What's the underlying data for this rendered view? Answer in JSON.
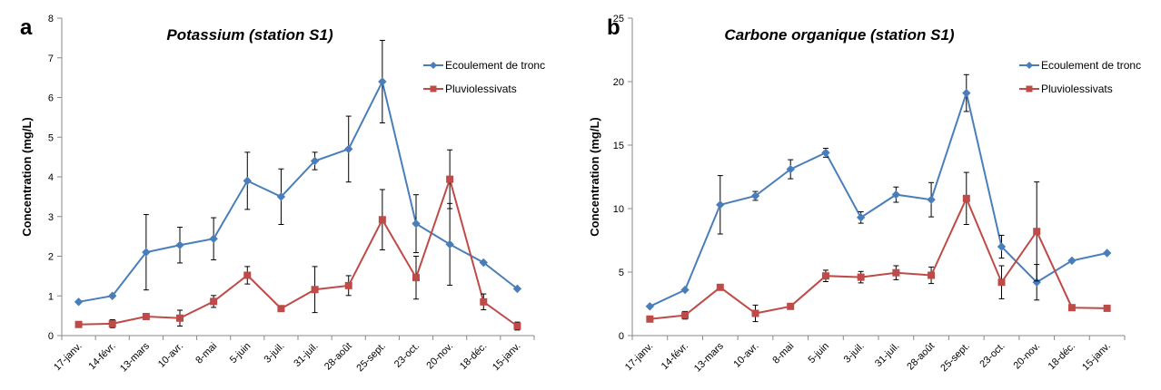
{
  "colors": {
    "series1": "#4a7ebb",
    "series2": "#be4b48",
    "error": "#000000"
  },
  "chart_data": [
    {
      "type": "line",
      "panel": "a",
      "title": "Potassium (station S1)",
      "ylabel": "Concentration (mg/L)",
      "ylim": [
        0,
        8
      ],
      "yticks": [
        0,
        1,
        2,
        3,
        4,
        5,
        6,
        7,
        8
      ],
      "categories": [
        "17-janv.",
        "14-févr.",
        "13-mars",
        "10-avr.",
        "8-mai",
        "5-juin",
        "3-juil.",
        "31-juil.",
        "28-août",
        "25-sept.",
        "23-oct.",
        "20-nov.",
        "18-déc.",
        "15-janv."
      ],
      "legend_position": "top-right",
      "series": [
        {
          "name": "Ecoulement de tronc",
          "marker": "diamond",
          "values": [
            0.85,
            1.0,
            2.1,
            2.28,
            2.44,
            3.9,
            3.5,
            4.4,
            4.7,
            6.4,
            2.82,
            2.3,
            1.84,
            1.18
          ],
          "errors": [
            null,
            null,
            0.95,
            0.45,
            0.53,
            0.72,
            0.7,
            0.22,
            0.83,
            1.04,
            0.73,
            1.03,
            null,
            null
          ]
        },
        {
          "name": "Pluviolessivats",
          "marker": "square",
          "values": [
            0.28,
            0.3,
            0.48,
            0.44,
            0.86,
            1.52,
            0.68,
            1.16,
            1.26,
            2.92,
            1.46,
            3.94,
            0.85,
            0.24
          ],
          "errors": [
            null,
            0.1,
            null,
            0.2,
            0.15,
            0.22,
            null,
            0.58,
            0.25,
            0.76,
            0.54,
            0.74,
            0.2,
            0.1
          ]
        }
      ]
    },
    {
      "type": "line",
      "panel": "b",
      "title": "Carbone organique (station S1)",
      "ylabel": "Concentration (mg/L)",
      "ylim": [
        0,
        25
      ],
      "yticks": [
        0,
        5,
        10,
        15,
        20,
        25
      ],
      "categories": [
        "17-janv.",
        "14-févr.",
        "13-mars",
        "10-avr.",
        "8-mai",
        "5-juin",
        "3-juil.",
        "31-juil.",
        "28-août",
        "25-sept.",
        "23-oct.",
        "20-nov.",
        "18-déc.",
        "15-janv."
      ],
      "legend_position": "top-right",
      "series": [
        {
          "name": "Ecoulement de tronc",
          "marker": "diamond",
          "values": [
            2.3,
            3.6,
            10.3,
            11.0,
            13.1,
            14.4,
            9.3,
            11.1,
            10.7,
            19.1,
            7.0,
            4.2,
            5.9,
            6.5
          ],
          "errors": [
            null,
            null,
            2.3,
            0.35,
            0.75,
            0.35,
            0.45,
            0.6,
            1.35,
            1.45,
            0.9,
            1.4,
            null,
            null
          ]
        },
        {
          "name": "Pluviolessivats",
          "marker": "square",
          "values": [
            1.3,
            1.6,
            3.8,
            1.75,
            2.3,
            4.7,
            4.6,
            4.95,
            4.75,
            10.8,
            4.2,
            8.2,
            2.2,
            2.15
          ],
          "errors": [
            null,
            0.3,
            null,
            0.65,
            null,
            0.45,
            0.45,
            0.55,
            0.65,
            2.05,
            1.3,
            3.9,
            null,
            null
          ]
        }
      ]
    }
  ]
}
